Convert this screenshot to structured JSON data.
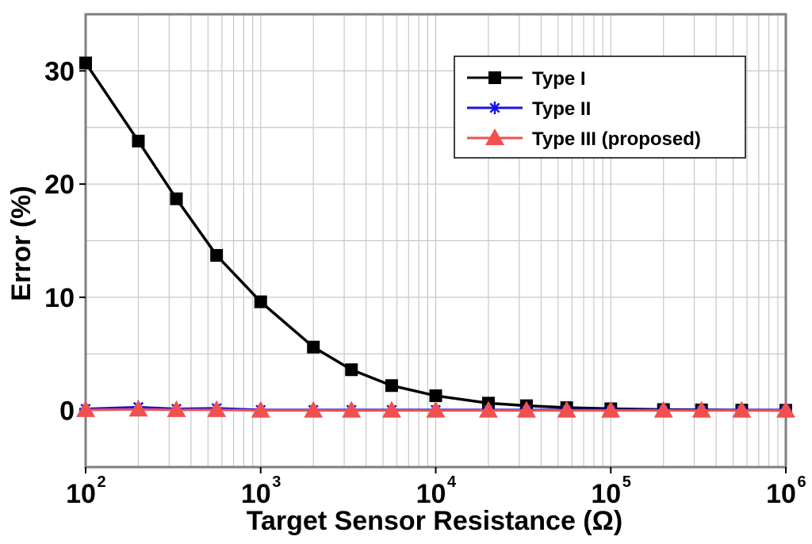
{
  "chart_data": {
    "type": "line",
    "xlabel": "Target Sensor Resistance (Ω)",
    "ylabel": "Error (%)",
    "x_scale": "log",
    "xlim": [
      100,
      1000000
    ],
    "ylim": [
      -5,
      35
    ],
    "grid": true,
    "legend_position": "top-right",
    "x_ticks": [
      {
        "base": "10",
        "exp": "2",
        "value": 100
      },
      {
        "base": "10",
        "exp": "3",
        "value": 1000
      },
      {
        "base": "10",
        "exp": "4",
        "value": 10000
      },
      {
        "base": "10",
        "exp": "5",
        "value": 100000
      },
      {
        "base": "10",
        "exp": "6",
        "value": 1000000
      }
    ],
    "y_ticks": [
      {
        "label": "0",
        "value": 0
      },
      {
        "label": "10",
        "value": 10
      },
      {
        "label": "20",
        "value": 20
      },
      {
        "label": "30",
        "value": 30
      }
    ],
    "x": [
      100,
      200,
      330,
      560,
      1000,
      2000,
      3300,
      5600,
      10000,
      20000,
      33000,
      56000,
      100000,
      200000,
      330000,
      560000,
      1000000
    ],
    "series": [
      {
        "name": "Type I",
        "color": "#000000",
        "marker": "square",
        "values": [
          30.7,
          23.8,
          18.7,
          13.7,
          9.6,
          5.6,
          3.6,
          2.2,
          1.3,
          0.65,
          0.42,
          0.25,
          0.15,
          0.08,
          0.05,
          0.03,
          0.02
        ]
      },
      {
        "name": "Type II",
        "color": "#1414e0",
        "marker": "asterisk",
        "values": [
          0.15,
          0.3,
          0.15,
          0.2,
          0.05,
          0.05,
          0.05,
          0.05,
          0.05,
          0.05,
          0.05,
          0.05,
          0.05,
          0.05,
          0.05,
          0.05,
          0.05
        ]
      },
      {
        "name": "Type III (proposed)",
        "color": "#f05050",
        "marker": "triangle",
        "values": [
          0.05,
          0.1,
          0.05,
          0.05,
          0.0,
          0.0,
          0.0,
          0.0,
          0.0,
          0.0,
          0.0,
          0.0,
          0.0,
          0.0,
          0.0,
          0.0,
          0.0
        ]
      }
    ]
  }
}
